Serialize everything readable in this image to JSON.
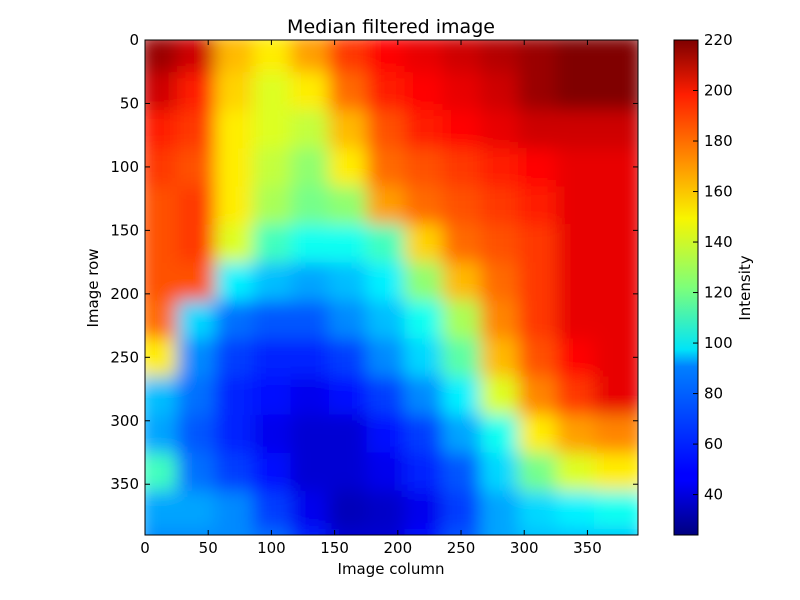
{
  "chart_data": {
    "type": "heatmap",
    "title": "Median filtered image",
    "xlabel": "Image column",
    "ylabel": "Image row",
    "xlim": [
      0,
      390
    ],
    "ylim": [
      390,
      0
    ],
    "x_ticks": [
      0,
      50,
      100,
      150,
      200,
      250,
      300,
      350
    ],
    "y_ticks": [
      0,
      50,
      100,
      150,
      200,
      250,
      300,
      350
    ],
    "colormap": "jet",
    "grid": false,
    "colorbar": {
      "label": "Intensity",
      "range": [
        24,
        220
      ],
      "ticks": [
        40,
        60,
        80,
        100,
        120,
        140,
        160,
        180,
        200,
        220
      ]
    },
    "grid_data": {
      "x_step": 30,
      "y_step": 30,
      "values": [
        [
          215,
          205,
          160,
          150,
          165,
          185,
          195,
          200,
          205,
          210,
          215,
          220,
          220
        ],
        [
          205,
          190,
          155,
          140,
          150,
          175,
          190,
          195,
          200,
          205,
          215,
          220,
          220
        ],
        [
          190,
          185,
          150,
          140,
          135,
          160,
          180,
          190,
          195,
          200,
          205,
          205,
          205
        ],
        [
          185,
          180,
          150,
          135,
          125,
          150,
          175,
          180,
          185,
          190,
          195,
          200,
          200
        ],
        [
          180,
          185,
          150,
          130,
          120,
          125,
          165,
          175,
          180,
          185,
          190,
          200,
          200
        ],
        [
          180,
          185,
          140,
          110,
          100,
          100,
          110,
          155,
          175,
          180,
          185,
          200,
          200
        ],
        [
          180,
          180,
          95,
          85,
          80,
          85,
          95,
          125,
          160,
          175,
          185,
          200,
          200
        ],
        [
          175,
          90,
          70,
          65,
          65,
          75,
          85,
          100,
          130,
          170,
          185,
          200,
          200
        ],
        [
          150,
          75,
          60,
          55,
          55,
          60,
          75,
          90,
          115,
          160,
          180,
          195,
          200
        ],
        [
          85,
          70,
          55,
          50,
          45,
          50,
          60,
          75,
          95,
          140,
          170,
          185,
          200
        ],
        [
          80,
          65,
          55,
          45,
          40,
          40,
          50,
          60,
          80,
          100,
          150,
          165,
          170
        ],
        [
          110,
          70,
          60,
          50,
          40,
          40,
          45,
          55,
          65,
          90,
          120,
          140,
          150
        ],
        [
          80,
          80,
          75,
          60,
          45,
          35,
          38,
          45,
          60,
          80,
          90,
          95,
          100
        ],
        [
          75,
          75,
          75,
          70,
          55,
          40,
          40,
          50,
          65,
          80,
          85,
          85,
          85
        ]
      ]
    }
  }
}
